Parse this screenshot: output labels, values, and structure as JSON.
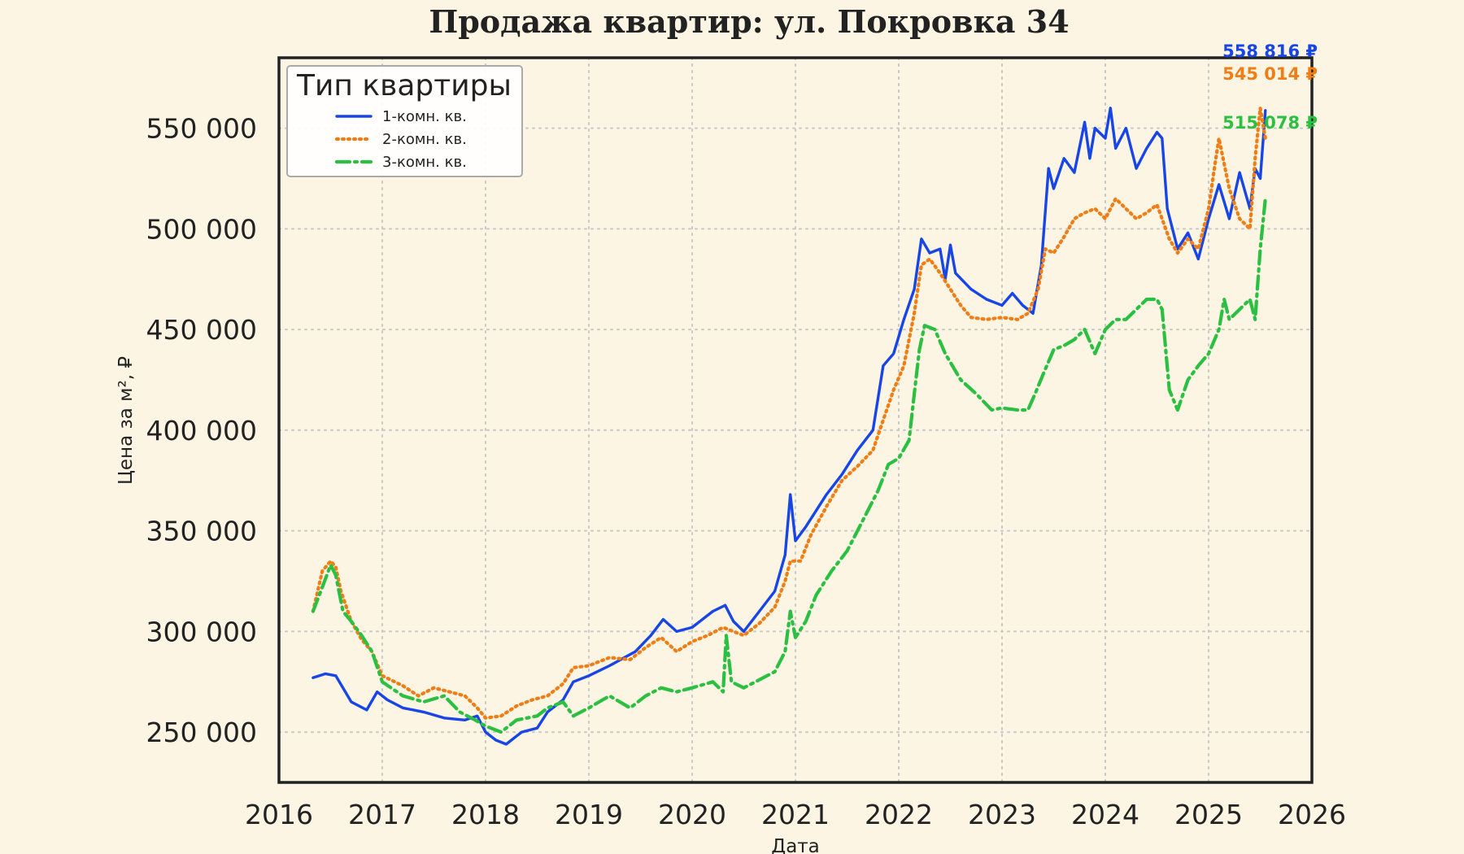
{
  "chart_data": {
    "type": "line",
    "title": "Продажа квартир: ул. Покровка 34",
    "xlabel": "Дата",
    "ylabel": "Цена за м², ₽",
    "xlim": [
      2016.0,
      2026.0
    ],
    "ylim": [
      225000,
      585000
    ],
    "x_ticks": [
      2016,
      2017,
      2018,
      2019,
      2020,
      2021,
      2022,
      2023,
      2024,
      2025,
      2026
    ],
    "x_tick_labels": [
      "2016",
      "2017",
      "2018",
      "2019",
      "2020",
      "2021",
      "2022",
      "2023",
      "2024",
      "2025",
      "2026"
    ],
    "y_ticks": [
      250000,
      300000,
      350000,
      400000,
      450000,
      500000,
      550000
    ],
    "y_tick_labels": [
      "250 000",
      "300 000",
      "350 000",
      "400 000",
      "450 000",
      "500 000",
      "550 000"
    ],
    "grid": true,
    "legend": {
      "title": "Тип квартиры",
      "position": "top-left"
    },
    "series": [
      {
        "name": "1-комн. кв.",
        "color": "#1846e6",
        "style": "solid",
        "end_label": "558 816 ₽",
        "points": [
          [
            2016.33,
            277000
          ],
          [
            2016.45,
            279000
          ],
          [
            2016.55,
            278000
          ],
          [
            2016.7,
            265000
          ],
          [
            2016.85,
            261000
          ],
          [
            2016.95,
            270000
          ],
          [
            2017.05,
            266000
          ],
          [
            2017.2,
            262000
          ],
          [
            2017.4,
            260000
          ],
          [
            2017.6,
            257000
          ],
          [
            2017.8,
            256000
          ],
          [
            2017.92,
            258000
          ],
          [
            2018.0,
            250000
          ],
          [
            2018.1,
            246000
          ],
          [
            2018.2,
            244000
          ],
          [
            2018.35,
            250000
          ],
          [
            2018.5,
            252000
          ],
          [
            2018.6,
            260000
          ],
          [
            2018.75,
            266000
          ],
          [
            2018.85,
            275000
          ],
          [
            2019.0,
            278000
          ],
          [
            2019.2,
            283000
          ],
          [
            2019.45,
            290000
          ],
          [
            2019.6,
            298000
          ],
          [
            2019.72,
            306000
          ],
          [
            2019.85,
            300000
          ],
          [
            2020.0,
            302000
          ],
          [
            2020.2,
            310000
          ],
          [
            2020.32,
            313000
          ],
          [
            2020.4,
            305000
          ],
          [
            2020.5,
            300000
          ],
          [
            2020.65,
            310000
          ],
          [
            2020.8,
            320000
          ],
          [
            2020.9,
            338000
          ],
          [
            2020.95,
            368000
          ],
          [
            2021.0,
            345000
          ],
          [
            2021.1,
            352000
          ],
          [
            2021.2,
            360000
          ],
          [
            2021.3,
            368000
          ],
          [
            2021.45,
            378000
          ],
          [
            2021.6,
            390000
          ],
          [
            2021.75,
            400000
          ],
          [
            2021.85,
            432000
          ],
          [
            2021.95,
            438000
          ],
          [
            2022.05,
            455000
          ],
          [
            2022.15,
            470000
          ],
          [
            2022.22,
            495000
          ],
          [
            2022.3,
            488000
          ],
          [
            2022.4,
            490000
          ],
          [
            2022.45,
            475000
          ],
          [
            2022.5,
            492000
          ],
          [
            2022.55,
            478000
          ],
          [
            2022.7,
            470000
          ],
          [
            2022.85,
            465000
          ],
          [
            2023.0,
            462000
          ],
          [
            2023.1,
            468000
          ],
          [
            2023.2,
            462000
          ],
          [
            2023.3,
            458000
          ],
          [
            2023.38,
            482000
          ],
          [
            2023.45,
            530000
          ],
          [
            2023.5,
            520000
          ],
          [
            2023.6,
            535000
          ],
          [
            2023.7,
            528000
          ],
          [
            2023.8,
            553000
          ],
          [
            2023.85,
            535000
          ],
          [
            2023.9,
            550000
          ],
          [
            2024.0,
            545000
          ],
          [
            2024.05,
            560000
          ],
          [
            2024.1,
            540000
          ],
          [
            2024.2,
            550000
          ],
          [
            2024.3,
            530000
          ],
          [
            2024.4,
            540000
          ],
          [
            2024.5,
            548000
          ],
          [
            2024.55,
            545000
          ],
          [
            2024.6,
            510000
          ],
          [
            2024.7,
            490000
          ],
          [
            2024.8,
            498000
          ],
          [
            2024.9,
            485000
          ],
          [
            2025.0,
            505000
          ],
          [
            2025.1,
            522000
          ],
          [
            2025.2,
            505000
          ],
          [
            2025.3,
            528000
          ],
          [
            2025.4,
            510000
          ],
          [
            2025.45,
            530000
          ],
          [
            2025.5,
            525000
          ],
          [
            2025.55,
            558816
          ]
        ]
      },
      {
        "name": "2-комн. кв.",
        "color": "#f07e16",
        "style": "dotted",
        "end_label": "545 014 ₽",
        "points": [
          [
            2016.33,
            310000
          ],
          [
            2016.42,
            330000
          ],
          [
            2016.5,
            335000
          ],
          [
            2016.55,
            332000
          ],
          [
            2016.6,
            320000
          ],
          [
            2016.7,
            305000
          ],
          [
            2016.8,
            296000
          ],
          [
            2016.9,
            290000
          ],
          [
            2017.0,
            278000
          ],
          [
            2017.2,
            273000
          ],
          [
            2017.35,
            268000
          ],
          [
            2017.5,
            272000
          ],
          [
            2017.65,
            270000
          ],
          [
            2017.8,
            268000
          ],
          [
            2017.92,
            262000
          ],
          [
            2018.0,
            257000
          ],
          [
            2018.15,
            258000
          ],
          [
            2018.3,
            263000
          ],
          [
            2018.45,
            266000
          ],
          [
            2018.6,
            268000
          ],
          [
            2018.75,
            274000
          ],
          [
            2018.85,
            282000
          ],
          [
            2019.0,
            283000
          ],
          [
            2019.2,
            287000
          ],
          [
            2019.4,
            286000
          ],
          [
            2019.55,
            292000
          ],
          [
            2019.7,
            297000
          ],
          [
            2019.85,
            290000
          ],
          [
            2020.0,
            295000
          ],
          [
            2020.15,
            298000
          ],
          [
            2020.3,
            302000
          ],
          [
            2020.4,
            300000
          ],
          [
            2020.5,
            298000
          ],
          [
            2020.65,
            304000
          ],
          [
            2020.8,
            312000
          ],
          [
            2020.9,
            325000
          ],
          [
            2020.95,
            335000
          ],
          [
            2021.05,
            335000
          ],
          [
            2021.15,
            348000
          ],
          [
            2021.3,
            362000
          ],
          [
            2021.45,
            375000
          ],
          [
            2021.6,
            382000
          ],
          [
            2021.75,
            390000
          ],
          [
            2021.85,
            405000
          ],
          [
            2021.95,
            420000
          ],
          [
            2022.05,
            432000
          ],
          [
            2022.15,
            458000
          ],
          [
            2022.22,
            482000
          ],
          [
            2022.3,
            485000
          ],
          [
            2022.4,
            478000
          ],
          [
            2022.5,
            470000
          ],
          [
            2022.6,
            462000
          ],
          [
            2022.7,
            456000
          ],
          [
            2022.85,
            455000
          ],
          [
            2023.0,
            456000
          ],
          [
            2023.15,
            455000
          ],
          [
            2023.25,
            458000
          ],
          [
            2023.35,
            470000
          ],
          [
            2023.42,
            490000
          ],
          [
            2023.5,
            488000
          ],
          [
            2023.6,
            496000
          ],
          [
            2023.7,
            505000
          ],
          [
            2023.8,
            508000
          ],
          [
            2023.9,
            510000
          ],
          [
            2024.0,
            505000
          ],
          [
            2024.1,
            515000
          ],
          [
            2024.2,
            510000
          ],
          [
            2024.3,
            505000
          ],
          [
            2024.4,
            508000
          ],
          [
            2024.5,
            512000
          ],
          [
            2024.55,
            505000
          ],
          [
            2024.62,
            495000
          ],
          [
            2024.7,
            488000
          ],
          [
            2024.8,
            495000
          ],
          [
            2024.9,
            490000
          ],
          [
            2025.0,
            510000
          ],
          [
            2025.05,
            528000
          ],
          [
            2025.1,
            545000
          ],
          [
            2025.2,
            520000
          ],
          [
            2025.3,
            505000
          ],
          [
            2025.4,
            500000
          ],
          [
            2025.45,
            535000
          ],
          [
            2025.5,
            560000
          ],
          [
            2025.55,
            545014
          ]
        ]
      },
      {
        "name": "3-комн. кв.",
        "color": "#2cc043",
        "style": "dashdot",
        "end_label": "515 078 ₽",
        "points": [
          [
            2016.33,
            310000
          ],
          [
            2016.42,
            322000
          ],
          [
            2016.5,
            333000
          ],
          [
            2016.55,
            328000
          ],
          [
            2016.62,
            310000
          ],
          [
            2016.7,
            305000
          ],
          [
            2016.8,
            298000
          ],
          [
            2016.9,
            290000
          ],
          [
            2017.0,
            275000
          ],
          [
            2017.2,
            268000
          ],
          [
            2017.4,
            265000
          ],
          [
            2017.6,
            268000
          ],
          [
            2017.75,
            260000
          ],
          [
            2017.9,
            256000
          ],
          [
            2018.0,
            253000
          ],
          [
            2018.15,
            250000
          ],
          [
            2018.3,
            256000
          ],
          [
            2018.5,
            258000
          ],
          [
            2018.6,
            262000
          ],
          [
            2018.75,
            265000
          ],
          [
            2018.85,
            258000
          ],
          [
            2019.0,
            262000
          ],
          [
            2019.2,
            268000
          ],
          [
            2019.4,
            262000
          ],
          [
            2019.55,
            268000
          ],
          [
            2019.7,
            272000
          ],
          [
            2019.85,
            270000
          ],
          [
            2020.0,
            272000
          ],
          [
            2020.2,
            275000
          ],
          [
            2020.3,
            270000
          ],
          [
            2020.33,
            298000
          ],
          [
            2020.38,
            275000
          ],
          [
            2020.5,
            272000
          ],
          [
            2020.65,
            276000
          ],
          [
            2020.8,
            280000
          ],
          [
            2020.9,
            290000
          ],
          [
            2020.95,
            310000
          ],
          [
            2021.0,
            297000
          ],
          [
            2021.1,
            305000
          ],
          [
            2021.2,
            318000
          ],
          [
            2021.35,
            330000
          ],
          [
            2021.5,
            340000
          ],
          [
            2021.65,
            355000
          ],
          [
            2021.8,
            370000
          ],
          [
            2021.9,
            383000
          ],
          [
            2022.0,
            386000
          ],
          [
            2022.1,
            395000
          ],
          [
            2022.15,
            418000
          ],
          [
            2022.2,
            440000
          ],
          [
            2022.25,
            452000
          ],
          [
            2022.35,
            450000
          ],
          [
            2022.45,
            438000
          ],
          [
            2022.6,
            425000
          ],
          [
            2022.75,
            418000
          ],
          [
            2022.9,
            410000
          ],
          [
            2023.0,
            411000
          ],
          [
            2023.15,
            410000
          ],
          [
            2023.25,
            410000
          ],
          [
            2023.32,
            418000
          ],
          [
            2023.4,
            428000
          ],
          [
            2023.5,
            440000
          ],
          [
            2023.6,
            442000
          ],
          [
            2023.7,
            445000
          ],
          [
            2023.8,
            450000
          ],
          [
            2023.9,
            438000
          ],
          [
            2024.0,
            450000
          ],
          [
            2024.1,
            455000
          ],
          [
            2024.2,
            455000
          ],
          [
            2024.3,
            460000
          ],
          [
            2024.4,
            465000
          ],
          [
            2024.5,
            465000
          ],
          [
            2024.55,
            460000
          ],
          [
            2024.62,
            420000
          ],
          [
            2024.7,
            410000
          ],
          [
            2024.8,
            425000
          ],
          [
            2024.9,
            432000
          ],
          [
            2025.0,
            438000
          ],
          [
            2025.1,
            450000
          ],
          [
            2025.15,
            465000
          ],
          [
            2025.2,
            455000
          ],
          [
            2025.3,
            460000
          ],
          [
            2025.4,
            465000
          ],
          [
            2025.45,
            455000
          ],
          [
            2025.5,
            490000
          ],
          [
            2025.55,
            515078
          ]
        ]
      }
    ]
  }
}
